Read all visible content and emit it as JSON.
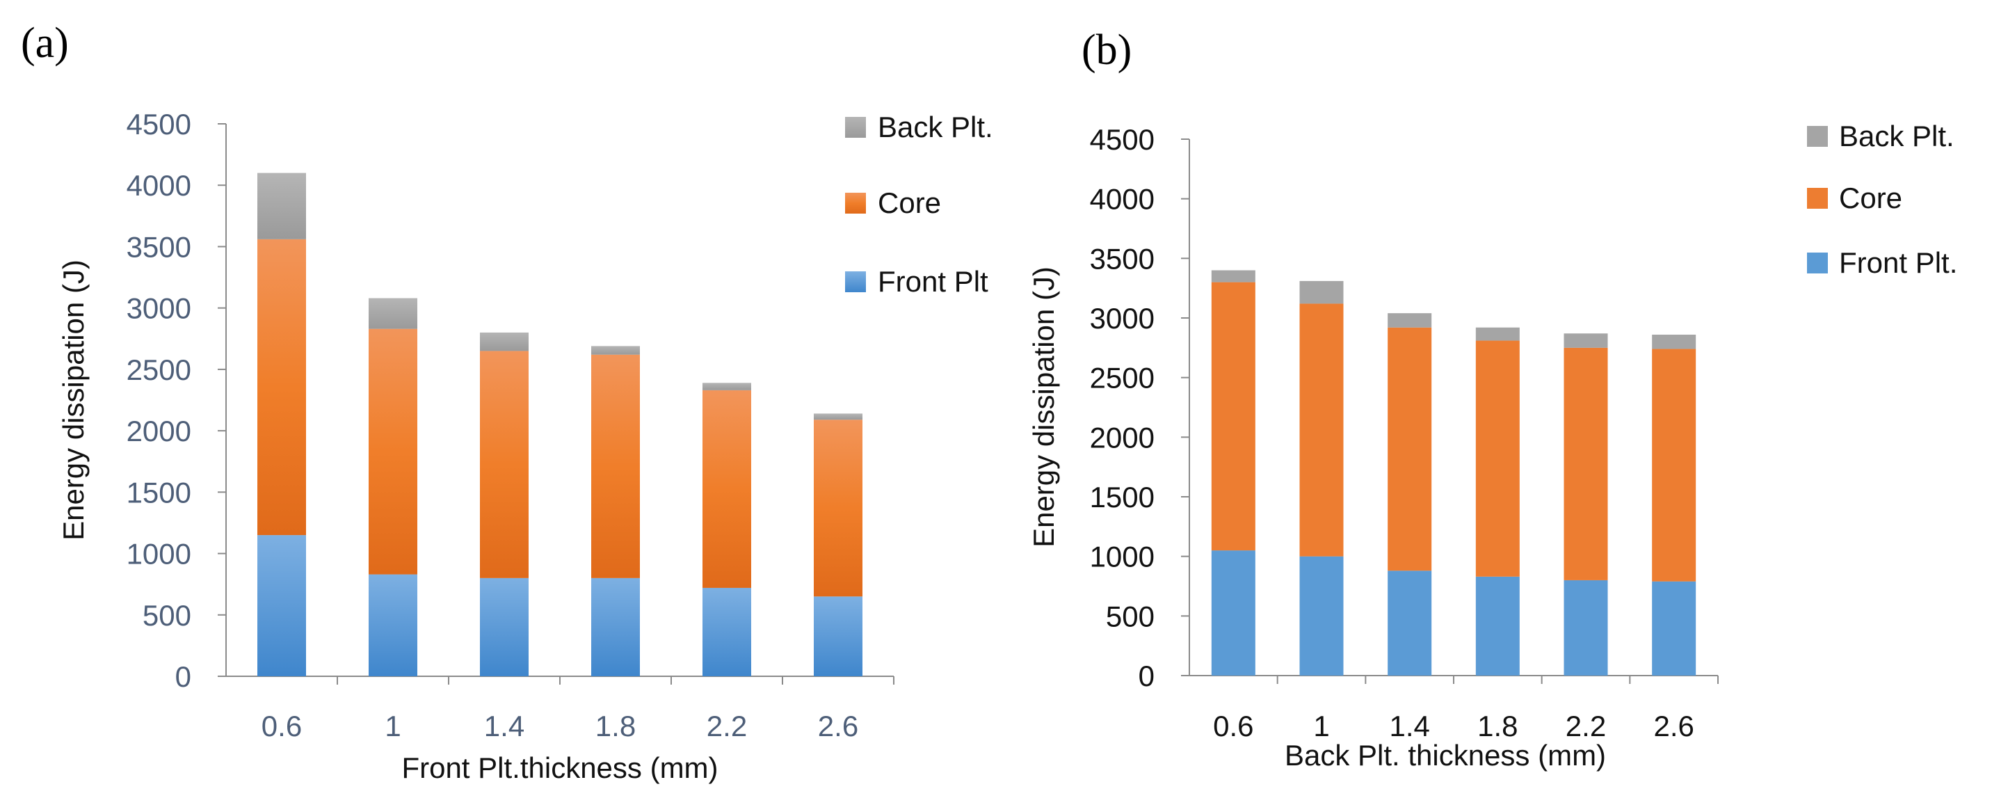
{
  "chart_data": [
    {
      "type": "bar",
      "stacked": true,
      "panel_label": "(a)",
      "categories": [
        "0.6",
        "1",
        "1.4",
        "1.8",
        "2.2",
        "2.6"
      ],
      "series": [
        {
          "name": "Front Plt",
          "values": [
            1150,
            830,
            800,
            800,
            720,
            650
          ],
          "color": "#5b9bd5"
        },
        {
          "name": "Core",
          "values": [
            2410,
            2000,
            1850,
            1820,
            1610,
            1440
          ],
          "color": "#ed7d31"
        },
        {
          "name": "Back Plt.",
          "values": [
            540,
            250,
            150,
            70,
            60,
            50
          ],
          "color": "#a5a5a5"
        }
      ],
      "legend_order": [
        "Back Plt.",
        "Core",
        "Front Plt"
      ],
      "title": "",
      "xlabel": "Front Plt.thickness (mm)",
      "ylabel": "Energy dissipation (J)",
      "ylim": [
        0,
        4500
      ],
      "yticks": [
        "0",
        "500",
        "1000",
        "1500",
        "2000",
        "2500",
        "3000",
        "3500",
        "4000",
        "4500"
      ],
      "grid": false,
      "legend_position": "top-right"
    },
    {
      "type": "bar",
      "stacked": true,
      "panel_label": "(b)",
      "categories": [
        "0.6",
        "1",
        "1.4",
        "1.8",
        "2.2",
        "2.6"
      ],
      "series": [
        {
          "name": "Front Plt.",
          "values": [
            1050,
            1000,
            880,
            830,
            800,
            790
          ],
          "color": "#5b9bd5"
        },
        {
          "name": "Core",
          "values": [
            2250,
            2120,
            2040,
            1980,
            1950,
            1950
          ],
          "color": "#ed7d31"
        },
        {
          "name": "Back Plt.",
          "values": [
            100,
            190,
            120,
            110,
            120,
            120
          ],
          "color": "#a5a5a5"
        }
      ],
      "legend_order": [
        "Back Plt.",
        "Core",
        "Front Plt."
      ],
      "title": "",
      "xlabel": "Back Plt. thickness (mm)",
      "ylabel": "Energy dissipation (J)",
      "ylim": [
        0,
        4500
      ],
      "yticks": [
        "0",
        "500",
        "1000",
        "1500",
        "2000",
        "2500",
        "3000",
        "3500",
        "4000",
        "4500"
      ],
      "grid": false,
      "legend_position": "top-right"
    }
  ]
}
